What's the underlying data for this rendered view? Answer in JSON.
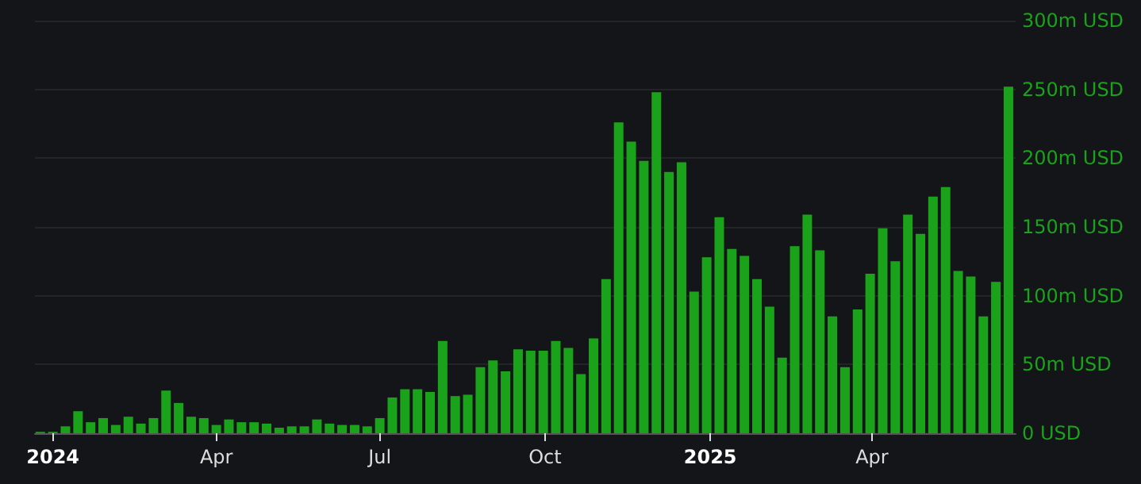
{
  "chart_data": {
    "type": "bar",
    "x": [
      "2023-12-25",
      "2024-01-01",
      "2024-01-08",
      "2024-01-15",
      "2024-01-22",
      "2024-01-29",
      "2024-02-05",
      "2024-02-12",
      "2024-02-19",
      "2024-02-26",
      "2024-03-04",
      "2024-03-11",
      "2024-03-18",
      "2024-03-25",
      "2024-04-01",
      "2024-04-08",
      "2024-04-15",
      "2024-04-22",
      "2024-04-29",
      "2024-05-06",
      "2024-05-13",
      "2024-05-20",
      "2024-05-27",
      "2024-06-03",
      "2024-06-10",
      "2024-06-17",
      "2024-06-24",
      "2024-07-01",
      "2024-07-08",
      "2024-07-15",
      "2024-07-22",
      "2024-07-29",
      "2024-08-05",
      "2024-08-12",
      "2024-08-19",
      "2024-08-26",
      "2024-09-02",
      "2024-09-09",
      "2024-09-16",
      "2024-09-23",
      "2024-09-30",
      "2024-10-07",
      "2024-10-14",
      "2024-10-21",
      "2024-10-28",
      "2024-11-04",
      "2024-11-11",
      "2024-11-18",
      "2024-11-25",
      "2024-12-02",
      "2024-12-09",
      "2024-12-16",
      "2024-12-23",
      "2024-12-30",
      "2025-01-06",
      "2025-01-13",
      "2025-01-20",
      "2025-01-27",
      "2025-02-03",
      "2025-02-10",
      "2025-02-17",
      "2025-02-24",
      "2025-03-03",
      "2025-03-10",
      "2025-03-17",
      "2025-03-24",
      "2025-03-31",
      "2025-04-07",
      "2025-04-14",
      "2025-04-21",
      "2025-04-28",
      "2025-05-05",
      "2025-05-12",
      "2025-05-19",
      "2025-05-26",
      "2025-06-02",
      "2025-06-09",
      "2025-06-16"
    ],
    "values": [
      1,
      1,
      5,
      16,
      8,
      11,
      6,
      12,
      7,
      11,
      31,
      22,
      12,
      11,
      6,
      10,
      8,
      8,
      7,
      4,
      5,
      5,
      10,
      7,
      6,
      6,
      5,
      11,
      26,
      32,
      32,
      30,
      67,
      27,
      28,
      48,
      53,
      45,
      61,
      60,
      60,
      67,
      62,
      43,
      69,
      112,
      226,
      212,
      198,
      248,
      190,
      197,
      103,
      128,
      157,
      134,
      129,
      112,
      92,
      55,
      136,
      159,
      133,
      85,
      48,
      90,
      116,
      149,
      125,
      159,
      145,
      172,
      179,
      118,
      114,
      85,
      110,
      252
    ],
    "color": "#1aa31a",
    "xlim": [
      "2023-12-22",
      "2025-06-20"
    ],
    "xticks": [
      {
        "value": "2024-01-01",
        "label": "2024"
      },
      {
        "value": "2024-04-01",
        "label": "Apr"
      },
      {
        "value": "2024-07-01",
        "label": "Jul"
      },
      {
        "value": "2024-10-01",
        "label": "Oct"
      },
      {
        "value": "2025-01-01",
        "label": "2025"
      },
      {
        "value": "2025-04-01",
        "label": "Apr"
      }
    ],
    "ylim": [
      0,
      300
    ],
    "yticks": [
      {
        "value": 0,
        "label": "0 USD"
      },
      {
        "value": 50,
        "label": "50m USD"
      },
      {
        "value": 100,
        "label": "100m USD"
      },
      {
        "value": 150,
        "label": "150m USD"
      },
      {
        "value": 200,
        "label": "200m USD"
      },
      {
        "value": 250,
        "label": "250m USD"
      },
      {
        "value": 300,
        "label": "300m USD"
      }
    ],
    "grid": "y"
  }
}
